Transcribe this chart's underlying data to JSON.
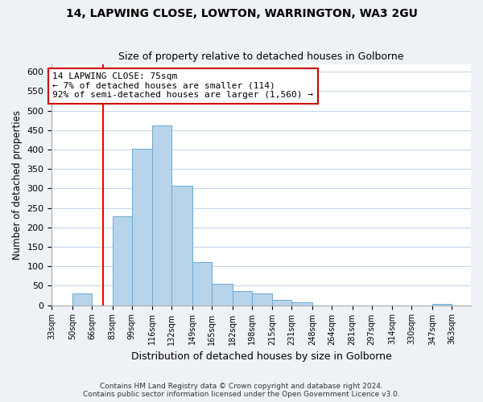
{
  "title": "14, LAPWING CLOSE, LOWTON, WARRINGTON, WA3 2GU",
  "subtitle": "Size of property relative to detached houses in Golborne",
  "xlabel": "Distribution of detached houses by size in Golborne",
  "ylabel": "Number of detached properties",
  "bin_labels": [
    "33sqm",
    "50sqm",
    "66sqm",
    "83sqm",
    "99sqm",
    "116sqm",
    "132sqm",
    "149sqm",
    "165sqm",
    "182sqm",
    "198sqm",
    "215sqm",
    "231sqm",
    "248sqm",
    "264sqm",
    "281sqm",
    "297sqm",
    "314sqm",
    "330sqm",
    "347sqm",
    "363sqm"
  ],
  "bin_edges": [
    33,
    50,
    66,
    83,
    99,
    116,
    132,
    149,
    165,
    182,
    198,
    215,
    231,
    248,
    264,
    281,
    297,
    314,
    330,
    347,
    363
  ],
  "bar_heights": [
    0,
    30,
    0,
    228,
    403,
    462,
    308,
    111,
    54,
    37,
    30,
    13,
    7,
    0,
    0,
    0,
    0,
    0,
    0,
    3
  ],
  "bar_color": "#b8d4ea",
  "bar_edge_color": "#6aaad4",
  "vertical_line_x": 75,
  "ylim": [
    0,
    620
  ],
  "yticks": [
    0,
    50,
    100,
    150,
    200,
    250,
    300,
    350,
    400,
    450,
    500,
    550,
    600
  ],
  "annotation_line1": "14 LAPWING CLOSE: 75sqm",
  "annotation_line2": "← 7% of detached houses are smaller (114)",
  "annotation_line3": "92% of semi-detached houses are larger (1,560) →",
  "footer_line1": "Contains HM Land Registry data © Crown copyright and database right 2024.",
  "footer_line2": "Contains public sector information licensed under the Open Government Licence v3.0.",
  "background_color": "#eef2f7",
  "plot_bg_color": "#ffffff",
  "grid_color": "#c8d8e8",
  "title_fontsize": 10,
  "subtitle_fontsize": 9
}
